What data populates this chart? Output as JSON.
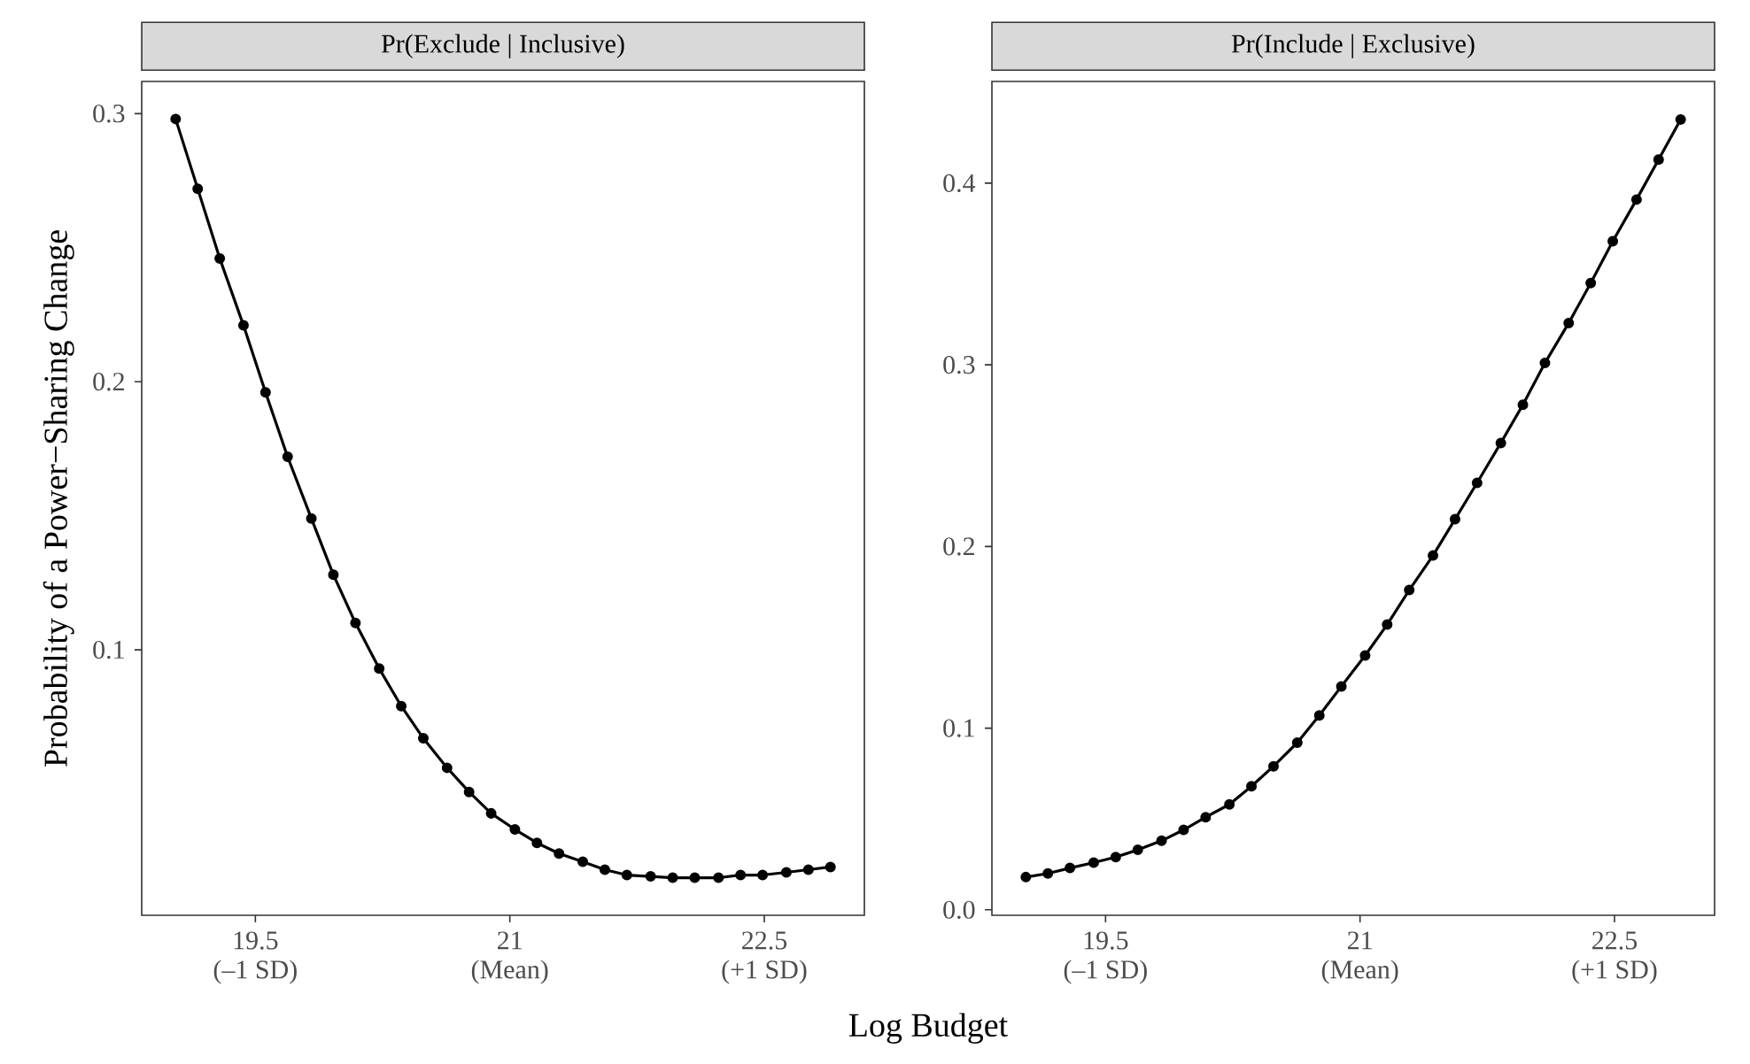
{
  "chart_data": [
    {
      "type": "line",
      "title": "Pr(Exclude | Inclusive)",
      "xlabel": "Log Budget",
      "ylabel": "Probability of a Power−Sharing Change",
      "marker": "circle",
      "line_style": "solid",
      "xlim": [
        18.83,
        23.09
      ],
      "ylim": [
        0.001,
        0.312
      ],
      "xticks": [
        19.5,
        21,
        22.5
      ],
      "annotations": [
        "(–1 SD)",
        "(Mean)",
        "(+1 SD)"
      ],
      "yticks": [
        0.1,
        0.2,
        0.3
      ],
      "x": [
        19.03,
        19.16,
        19.29,
        19.43,
        19.56,
        19.69,
        19.83,
        19.96,
        20.09,
        20.23,
        20.36,
        20.49,
        20.63,
        20.76,
        20.89,
        21.03,
        21.16,
        21.29,
        21.43,
        21.56,
        21.69,
        21.83,
        21.96,
        22.09,
        22.23,
        22.36,
        22.49,
        22.63,
        22.76,
        22.89
      ],
      "series": [
        {
          "color": "#000000",
          "values": [
            0.298,
            0.272,
            0.246,
            0.221,
            0.196,
            0.172,
            0.149,
            0.128,
            0.11,
            0.093,
            0.079,
            0.067,
            0.056,
            0.047,
            0.039,
            0.033,
            0.028,
            0.024,
            0.021,
            0.018,
            0.016,
            0.0155,
            0.015,
            0.015,
            0.015,
            0.016,
            0.016,
            0.017,
            0.018,
            0.019
          ]
        }
      ]
    },
    {
      "type": "line",
      "title": "Pr(Include | Exclusive)",
      "marker": "circle",
      "line_style": "solid",
      "xlim": [
        18.83,
        23.09
      ],
      "ylim": [
        -0.003,
        0.456
      ],
      "xticks": [
        19.5,
        21,
        22.5
      ],
      "annotations": [
        "(–1 SD)",
        "(Mean)",
        "(+1 SD)"
      ],
      "yticks": [
        {
          "value": 0,
          "label": "0.0"
        },
        0.1,
        0.2,
        0.3,
        0.4
      ],
      "x": [
        19.03,
        19.16,
        19.29,
        19.43,
        19.56,
        19.69,
        19.83,
        19.96,
        20.09,
        20.23,
        20.36,
        20.49,
        20.63,
        20.76,
        20.89,
        21.03,
        21.16,
        21.29,
        21.43,
        21.56,
        21.69,
        21.83,
        21.96,
        22.09,
        22.23,
        22.36,
        22.49,
        22.63,
        22.76,
        22.89
      ],
      "series": [
        {
          "color": "#000000",
          "values": [
            0.018,
            0.02,
            0.023,
            0.026,
            0.029,
            0.033,
            0.038,
            0.044,
            0.051,
            0.058,
            0.068,
            0.079,
            0.092,
            0.107,
            0.123,
            0.14,
            0.157,
            0.176,
            0.195,
            0.215,
            0.235,
            0.257,
            0.278,
            0.301,
            0.323,
            0.345,
            0.368,
            0.391,
            0.413,
            0.435
          ]
        }
      ]
    }
  ]
}
